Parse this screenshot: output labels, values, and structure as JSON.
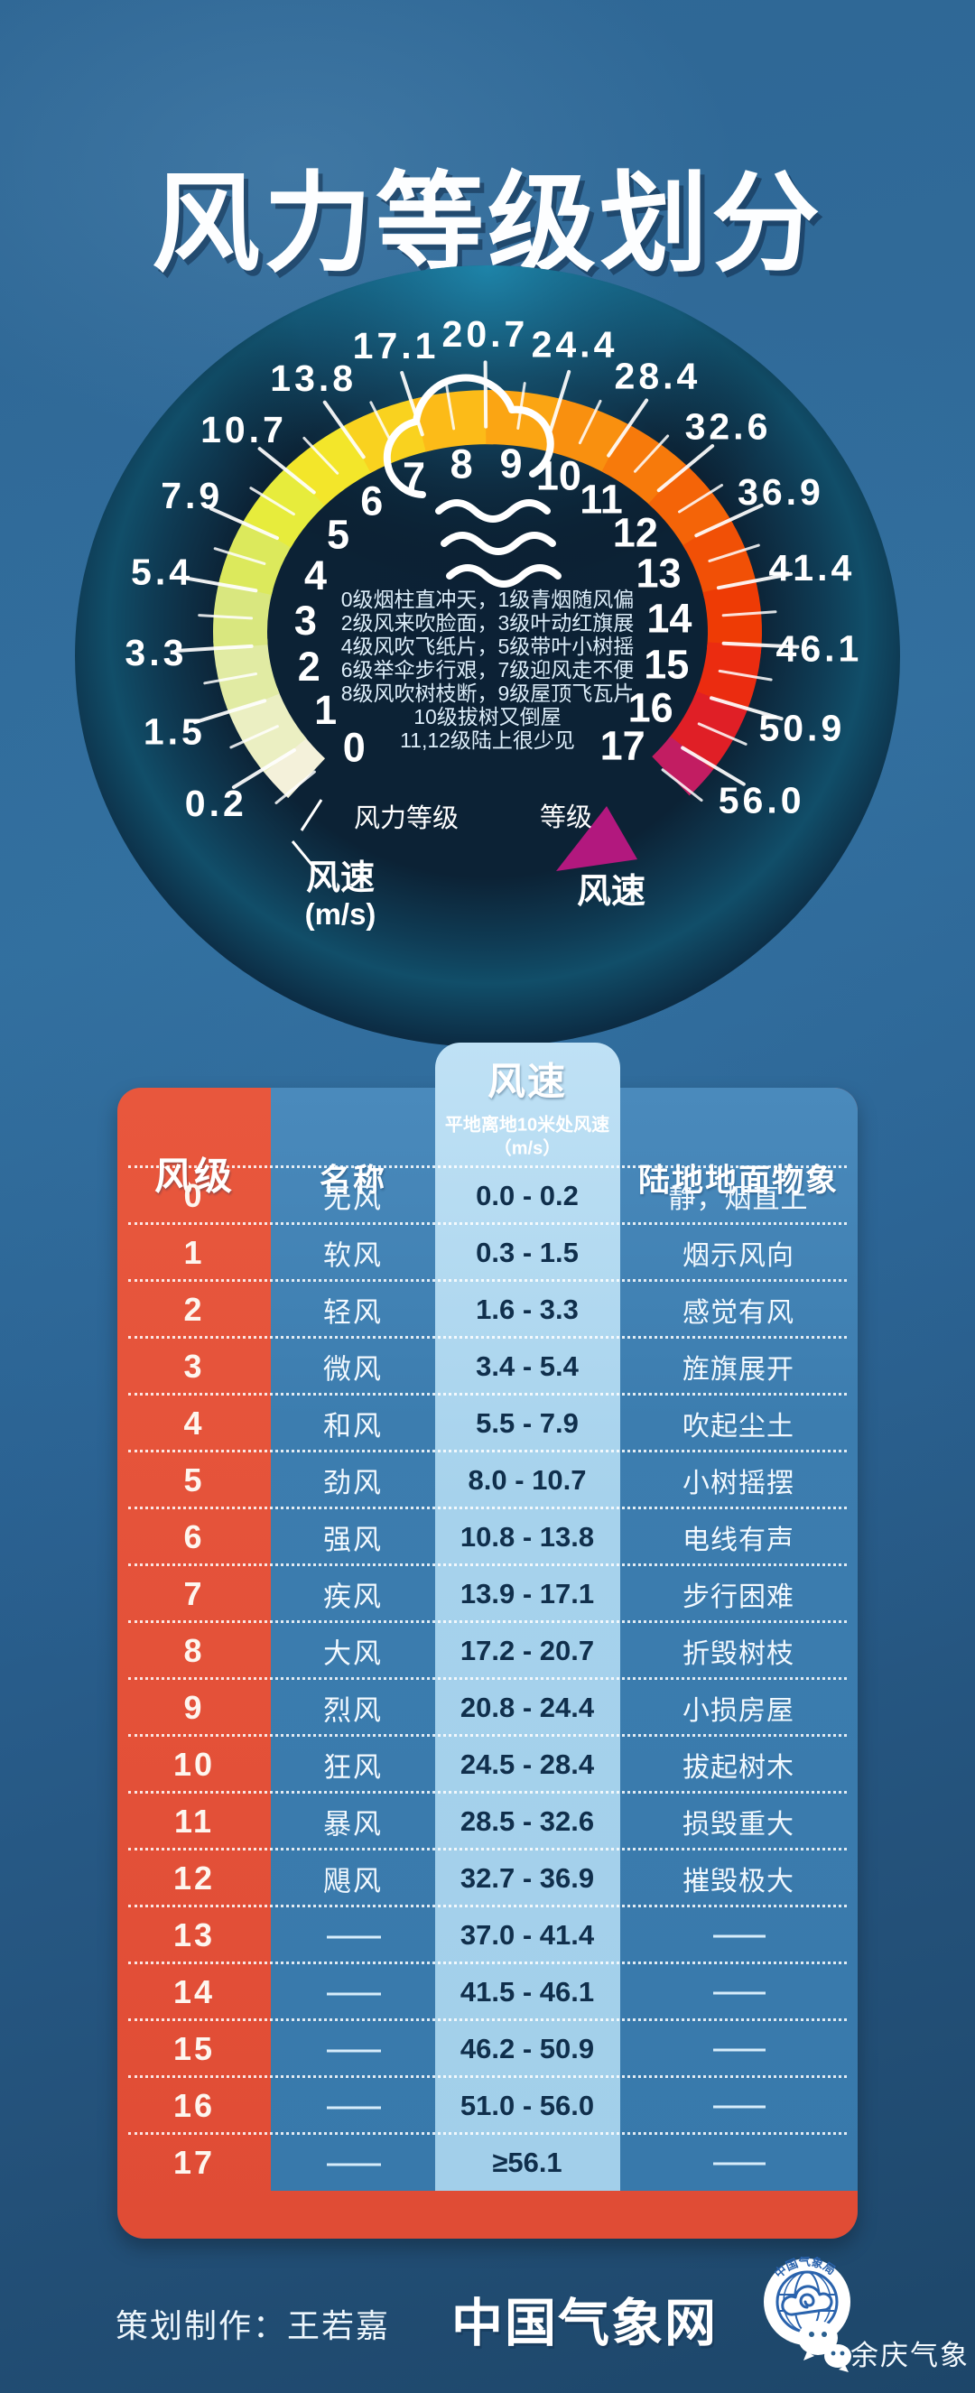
{
  "title": "风力等级划分",
  "gauge": {
    "scale_label_left": "风力等级",
    "speed_label_left_line1": "风速",
    "speed_label_left_line2": "(m/s)",
    "scale_label_right": "等级",
    "speed_label_right": "风速",
    "center_icon": "cloud-wind-icon",
    "levels": [
      {
        "level": "0",
        "color": "#f4f1da"
      },
      {
        "level": "1",
        "color": "#ebefc2"
      },
      {
        "level": "2",
        "color": "#e1eba3"
      },
      {
        "level": "3",
        "color": "#d9e77f"
      },
      {
        "level": "4",
        "color": "#dce95c"
      },
      {
        "level": "5",
        "color": "#e7ec3c"
      },
      {
        "level": "6",
        "color": "#f3e62a"
      },
      {
        "level": "7",
        "color": "#f9d21f"
      },
      {
        "level": "8",
        "color": "#fcbb18"
      },
      {
        "level": "9",
        "color": "#fba513"
      },
      {
        "level": "10",
        "color": "#f9900f"
      },
      {
        "level": "11",
        "color": "#f77a0b"
      },
      {
        "level": "12",
        "color": "#f46408"
      },
      {
        "level": "13",
        "color": "#f15006"
      },
      {
        "level": "14",
        "color": "#ee3b05"
      },
      {
        "level": "15",
        "color": "#eb2c10"
      },
      {
        "level": "16",
        "color": "#e01f26"
      },
      {
        "level": "17",
        "color": "#c21d62"
      }
    ],
    "boundary_speeds": [
      "0.2",
      "1.5",
      "3.3",
      "5.4",
      "7.9",
      "10.7",
      "13.8",
      "17.1",
      "20.7",
      "24.4",
      "28.4",
      "32.6",
      "36.9",
      "41.4",
      "46.1",
      "50.9",
      "56.0"
    ],
    "arrow_color": "#b2187e",
    "legend_lines": [
      "0级烟柱直冲天，1级青烟随风偏",
      "2级风来吹脸面，3级叶动红旗展",
      "4级风吹飞纸片，5级带叶小树摇",
      "6级举伞步行艰，7级迎风走不便",
      "8级风吹树枝断，9级屋顶飞瓦片",
      "10级拔树又倒屋",
      "11,12级陆上很少见"
    ]
  },
  "table": {
    "headers": {
      "level": "风级",
      "name": "名称",
      "speed": "风速",
      "speed_sub": "平地离地10米处风速",
      "speed_unit": "（m/s）",
      "phenomena": "陆地地面物象"
    },
    "empty_dash": "——"
  },
  "chart_data": {
    "type": "table",
    "title": "风力等级划分",
    "columns": [
      "风级",
      "名称",
      "平地离地10米处风速(m/s)",
      "陆地地面物象"
    ],
    "rows": [
      [
        "0",
        "无风",
        "0.0 - 0.2",
        "静，烟直上"
      ],
      [
        "1",
        "软风",
        "0.3 - 1.5",
        "烟示风向"
      ],
      [
        "2",
        "轻风",
        "1.6 - 3.3",
        "感觉有风"
      ],
      [
        "3",
        "微风",
        "3.4 - 5.4",
        "旌旗展开"
      ],
      [
        "4",
        "和风",
        "5.5 - 7.9",
        "吹起尘土"
      ],
      [
        "5",
        "劲风",
        "8.0 - 10.7",
        "小树摇摆"
      ],
      [
        "6",
        "强风",
        "10.8 - 13.8",
        "电线有声"
      ],
      [
        "7",
        "疾风",
        "13.9 - 17.1",
        "步行困难"
      ],
      [
        "8",
        "大风",
        "17.2 - 20.7",
        "折毁树枝"
      ],
      [
        "9",
        "烈风",
        "20.8 - 24.4",
        "小损房屋"
      ],
      [
        "10",
        "狂风",
        "24.5 - 28.4",
        "拔起树木"
      ],
      [
        "11",
        "暴风",
        "28.5 - 32.6",
        "损毁重大"
      ],
      [
        "12",
        "飓风",
        "32.7 - 36.9",
        "摧毁极大"
      ],
      [
        "13",
        "——",
        "37.0 - 41.4",
        "——"
      ],
      [
        "14",
        "——",
        "41.5 - 46.1",
        "——"
      ],
      [
        "15",
        "——",
        "46.2 - 50.9",
        "——"
      ],
      [
        "16",
        "——",
        "51.0 - 56.0",
        "——"
      ],
      [
        "17",
        "——",
        "≥56.1",
        "——"
      ]
    ]
  },
  "footer": {
    "credit": "策划制作：王若嘉",
    "site": "中国气象网",
    "logo": "china-meteorological-administration-logo",
    "logo_text": "中国气象局",
    "account": "余庆气象"
  }
}
